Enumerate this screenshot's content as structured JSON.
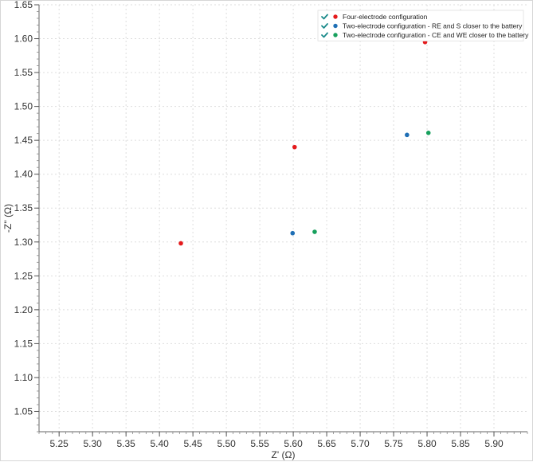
{
  "chart_data": {
    "type": "scatter",
    "title": "",
    "xlabel": "Z' (Ω)",
    "ylabel": "-Z'' (Ω)",
    "xlim": [
      5.22,
      5.95
    ],
    "ylim": [
      1.02,
      1.65
    ],
    "x_ticks": [
      "5.25",
      "5.30",
      "5.35",
      "5.40",
      "5.45",
      "5.50",
      "5.55",
      "5.60",
      "5.65",
      "5.70",
      "5.75",
      "5.80",
      "5.85",
      "5.90"
    ],
    "y_ticks": [
      "1.05",
      "1.10",
      "1.15",
      "1.20",
      "1.25",
      "1.30",
      "1.35",
      "1.40",
      "1.45",
      "1.50",
      "1.55",
      "1.60",
      "1.65"
    ],
    "grid": true,
    "legend_position": "top-right",
    "series": [
      {
        "name": "Four-electrode configuration",
        "color": "#e41a1c",
        "checked": true,
        "points": [
          [
            5.432,
            1.298
          ],
          [
            5.602,
            1.44
          ],
          [
            5.797,
            1.595
          ]
        ]
      },
      {
        "name": "Two-electrode configuration - RE and S closer to the battery",
        "color": "#1f6fb5",
        "checked": true,
        "points": [
          [
            5.599,
            1.313
          ],
          [
            5.77,
            1.458
          ]
        ]
      },
      {
        "name": "Two-electrode configuration - CE and WE closer to the battery",
        "color": "#17a05d",
        "checked": true,
        "points": [
          [
            5.632,
            1.315
          ],
          [
            5.802,
            1.461
          ]
        ]
      }
    ]
  },
  "legend": {
    "check_color": "#1a8a8a"
  }
}
